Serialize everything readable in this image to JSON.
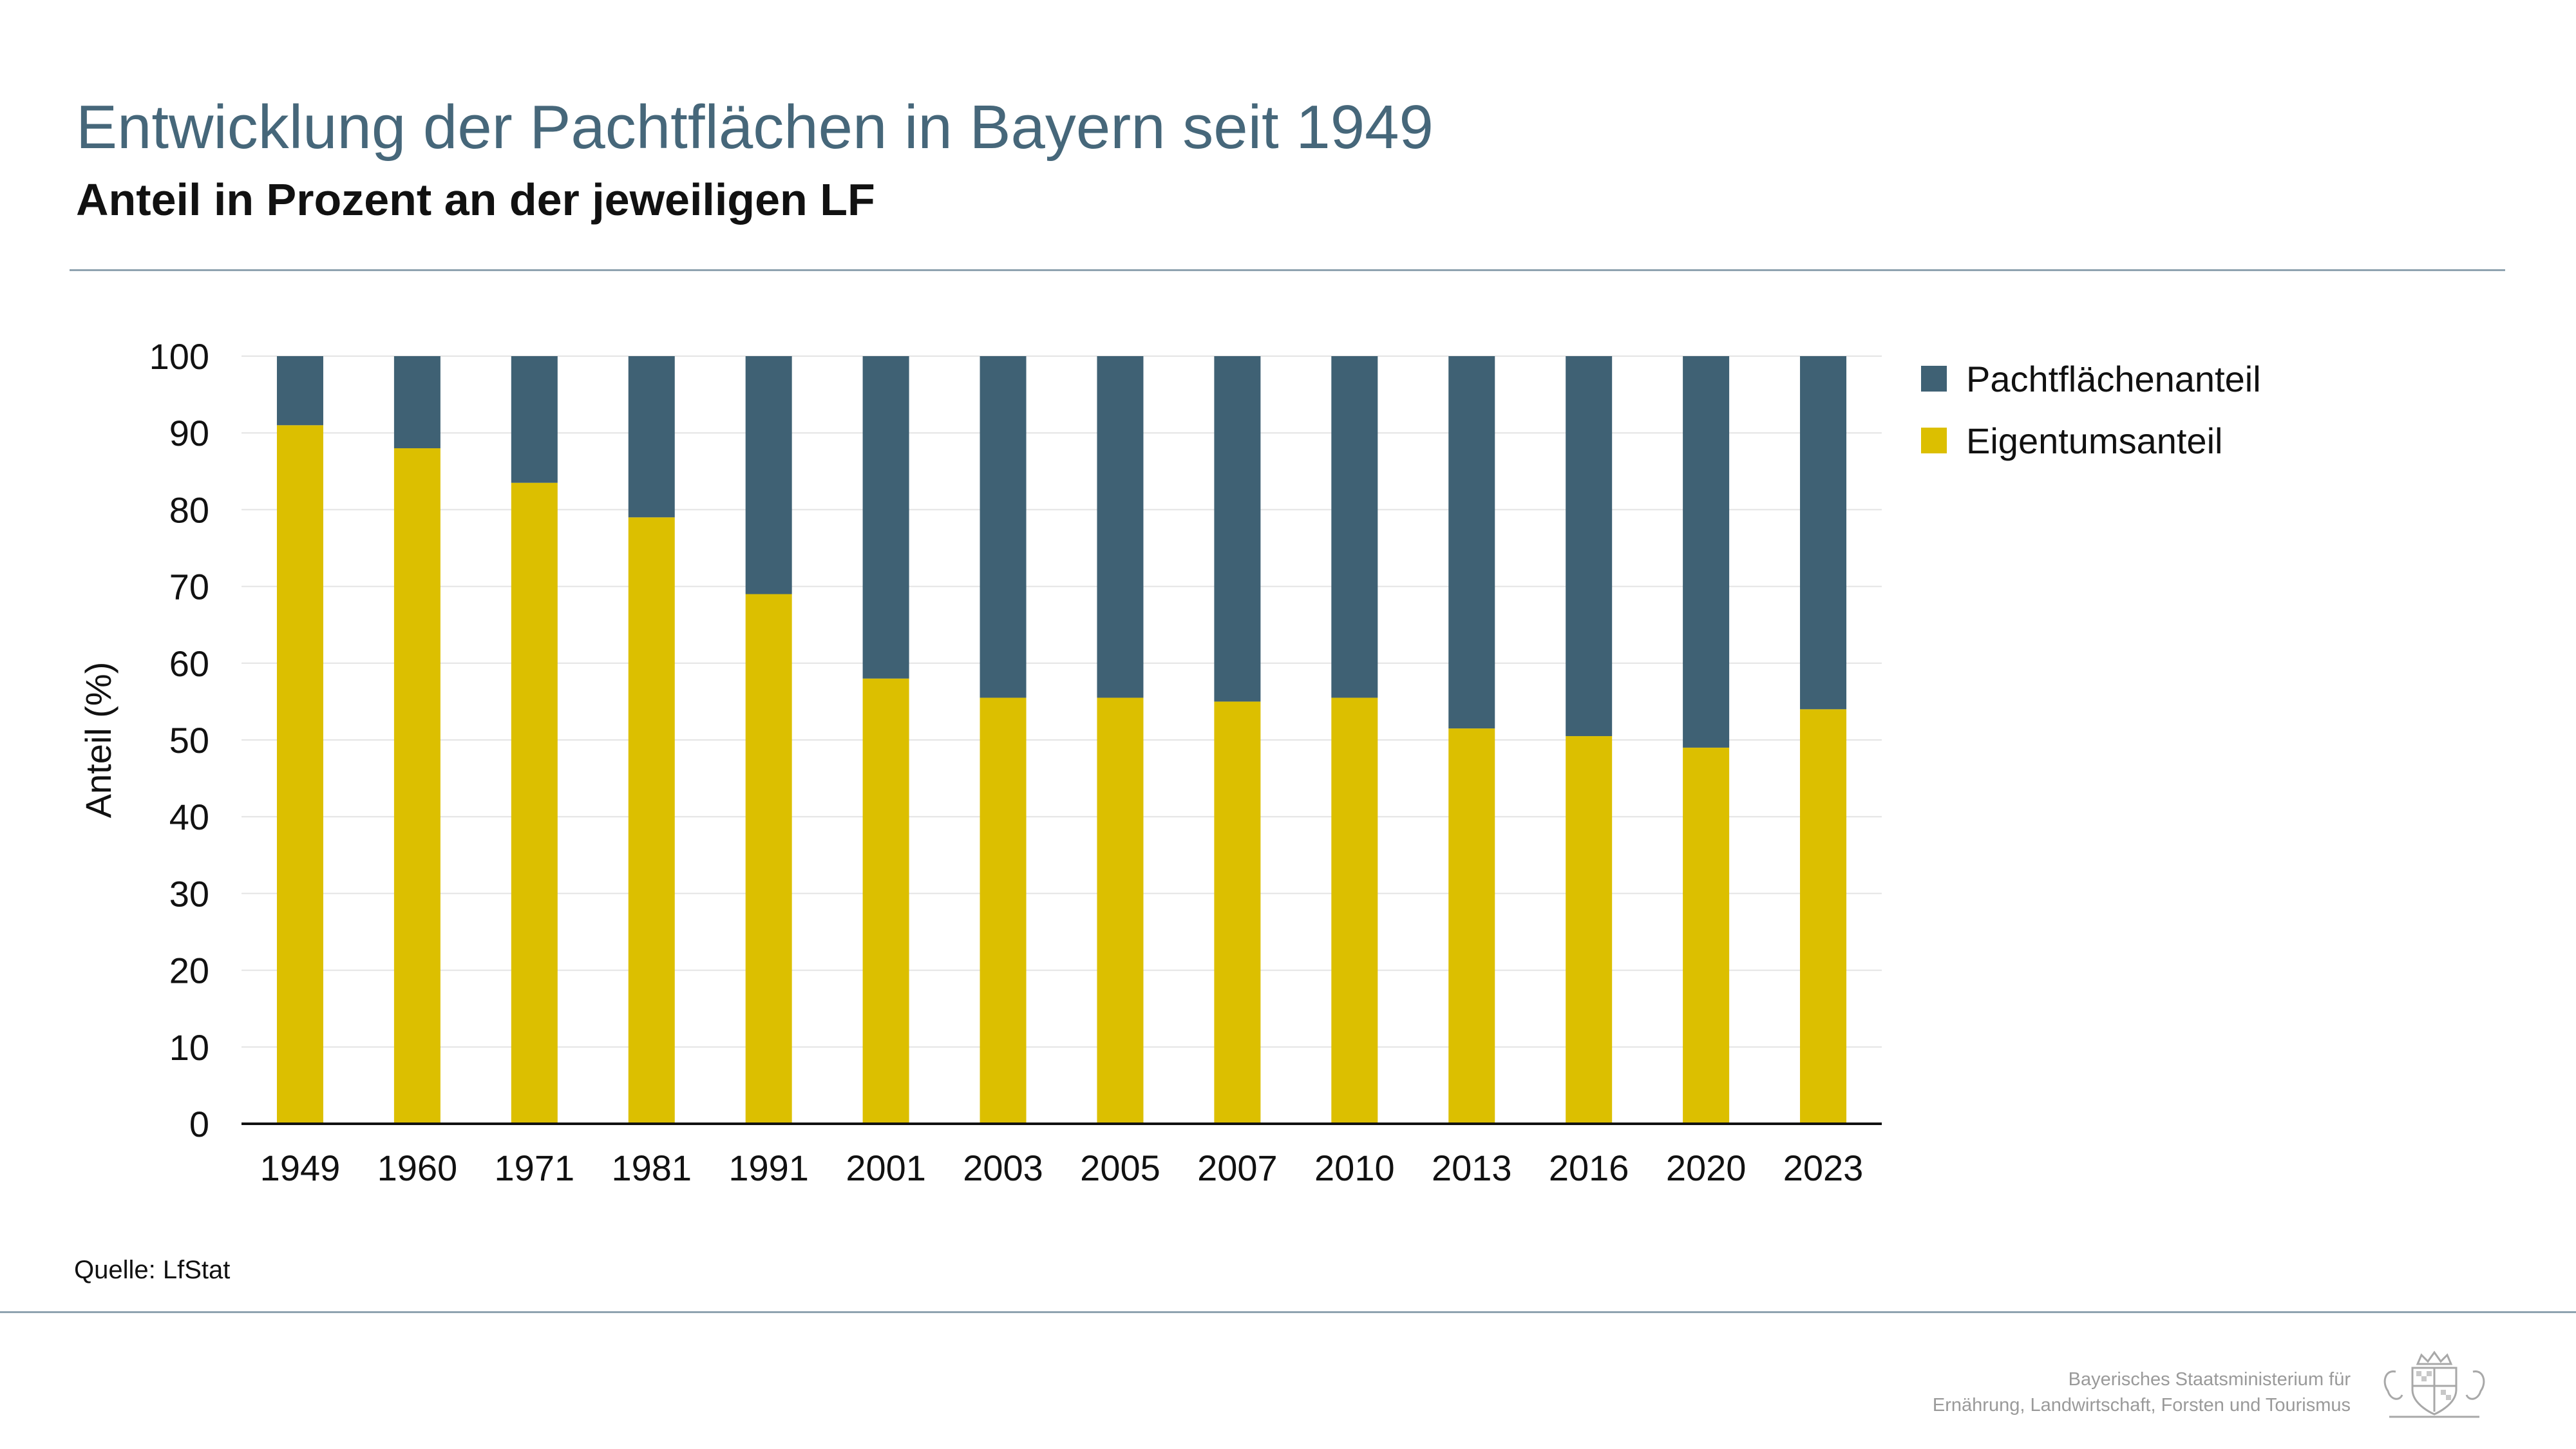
{
  "header": {
    "title": "Entwicklung der Pachtflächen in Bayern seit 1949",
    "subtitle": "Anteil in Prozent an der jeweiligen LF"
  },
  "chart_data": {
    "type": "bar",
    "stacked": true,
    "title": "Entwicklung der Pachtflächen in Bayern seit 1949",
    "subtitle": "Anteil in Prozent an der jeweiligen LF",
    "xlabel": "",
    "ylabel": "Anteil (%)",
    "ylim": [
      0,
      100
    ],
    "yticks": [
      0,
      10,
      20,
      30,
      40,
      50,
      60,
      70,
      80,
      90,
      100
    ],
    "grid": true,
    "legend_position": "right",
    "categories": [
      "1949",
      "1960",
      "1971",
      "1981",
      "1991",
      "2001",
      "2003",
      "2005",
      "2007",
      "2010",
      "2013",
      "2016",
      "2020",
      "2023"
    ],
    "series": [
      {
        "name": "Eigentumsanteil",
        "color": "#dcbf00",
        "values": [
          91,
          88,
          83.5,
          79,
          69,
          58,
          55.5,
          55.5,
          55,
          55.5,
          51.5,
          50.5,
          49,
          54
        ]
      },
      {
        "name": "Pachtflächenanteil",
        "color": "#3f6174",
        "values": [
          9,
          12,
          16.5,
          21,
          31,
          42,
          44.5,
          44.5,
          45,
          44.5,
          48.5,
          49.5,
          51,
          46
        ]
      }
    ]
  },
  "footer": {
    "source": "Quelle: LfStat",
    "ministry_line1": "Bayerisches Staatsministerium für",
    "ministry_line2": "Ernährung, Landwirtschaft, Forsten und Tourismus",
    "crest_icon": "bavarian-coat-of-arms-icon"
  }
}
